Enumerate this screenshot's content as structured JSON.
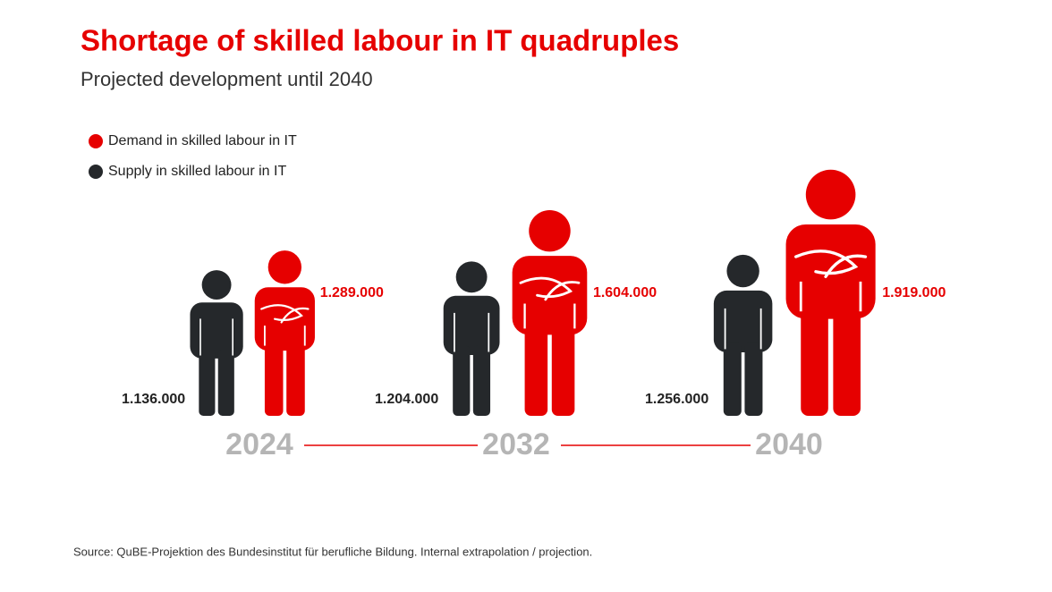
{
  "chart_data": {
    "type": "pictogram",
    "title": "Shortage of skilled labour in IT quadruples",
    "subtitle": "Projected development until 2040",
    "categories": [
      "2024",
      "2032",
      "2040"
    ],
    "series": [
      {
        "name": "Demand in skilled labour in IT",
        "color": "#e60000",
        "values": [
          1289000,
          1604000,
          1919000
        ],
        "value_labels": [
          "1.289.000",
          "1.604.000",
          "1.919.000"
        ]
      },
      {
        "name": "Supply in skilled labour in IT",
        "color": "#25282b",
        "values": [
          1136000,
          1204000,
          1256000
        ],
        "value_labels": [
          "1.136.000",
          "1.204.000",
          "1.256.000"
        ]
      }
    ],
    "source": "Source: QuBE-Projektion des Bundesinstitut für berufliche Bildung. Internal extrapolation / projection."
  }
}
